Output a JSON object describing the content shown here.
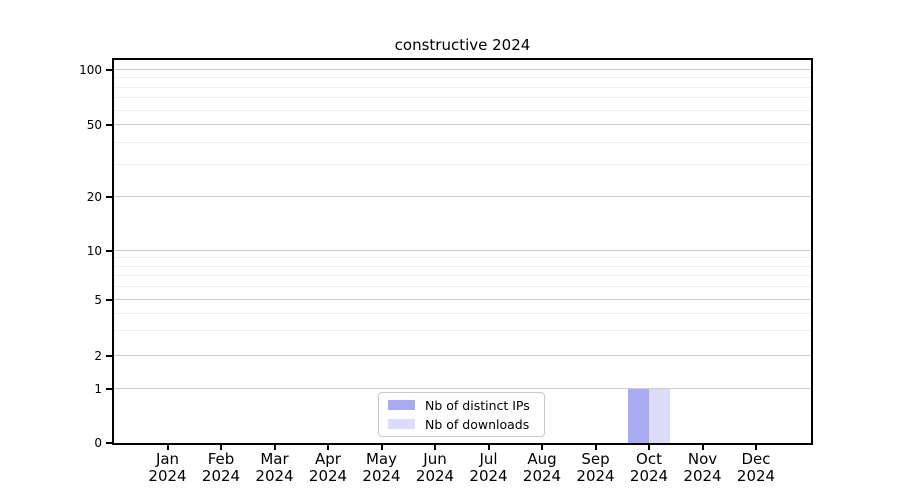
{
  "title": "constructive 2024",
  "chart_data": {
    "type": "bar",
    "title": "constructive 2024",
    "categories": [
      "Jan 2024",
      "Feb 2024",
      "Mar 2024",
      "Apr 2024",
      "May 2024",
      "Jun 2024",
      "Jul 2024",
      "Aug 2024",
      "Sep 2024",
      "Oct 2024",
      "Nov 2024",
      "Dec 2024"
    ],
    "series": [
      {
        "name": "Nb of distinct IPs",
        "color": "#aaaaf0",
        "values": [
          0,
          0,
          0,
          0,
          0,
          0,
          0,
          0,
          0,
          1,
          0,
          0
        ]
      },
      {
        "name": "Nb of downloads",
        "color": "#dcdcf8",
        "values": [
          0,
          0,
          0,
          0,
          0,
          0,
          0,
          0,
          0,
          1,
          0,
          0
        ]
      }
    ],
    "xlabel": "",
    "ylabel": "",
    "yscale": "symlog",
    "ylim": [
      0,
      110
    ],
    "y_ticks": [
      0,
      1,
      2,
      5,
      10,
      20,
      50,
      100
    ],
    "y_minor_ticks": [
      3,
      4,
      6,
      7,
      8,
      9,
      30,
      40,
      60,
      70,
      80,
      90
    ],
    "grid": "horizontal",
    "legend_position": "lower center inside"
  },
  "colors": {
    "major_grid": "#cccccc",
    "minor_grid": "#efefef",
    "axis": "#000000",
    "background": "#ffffff"
  }
}
